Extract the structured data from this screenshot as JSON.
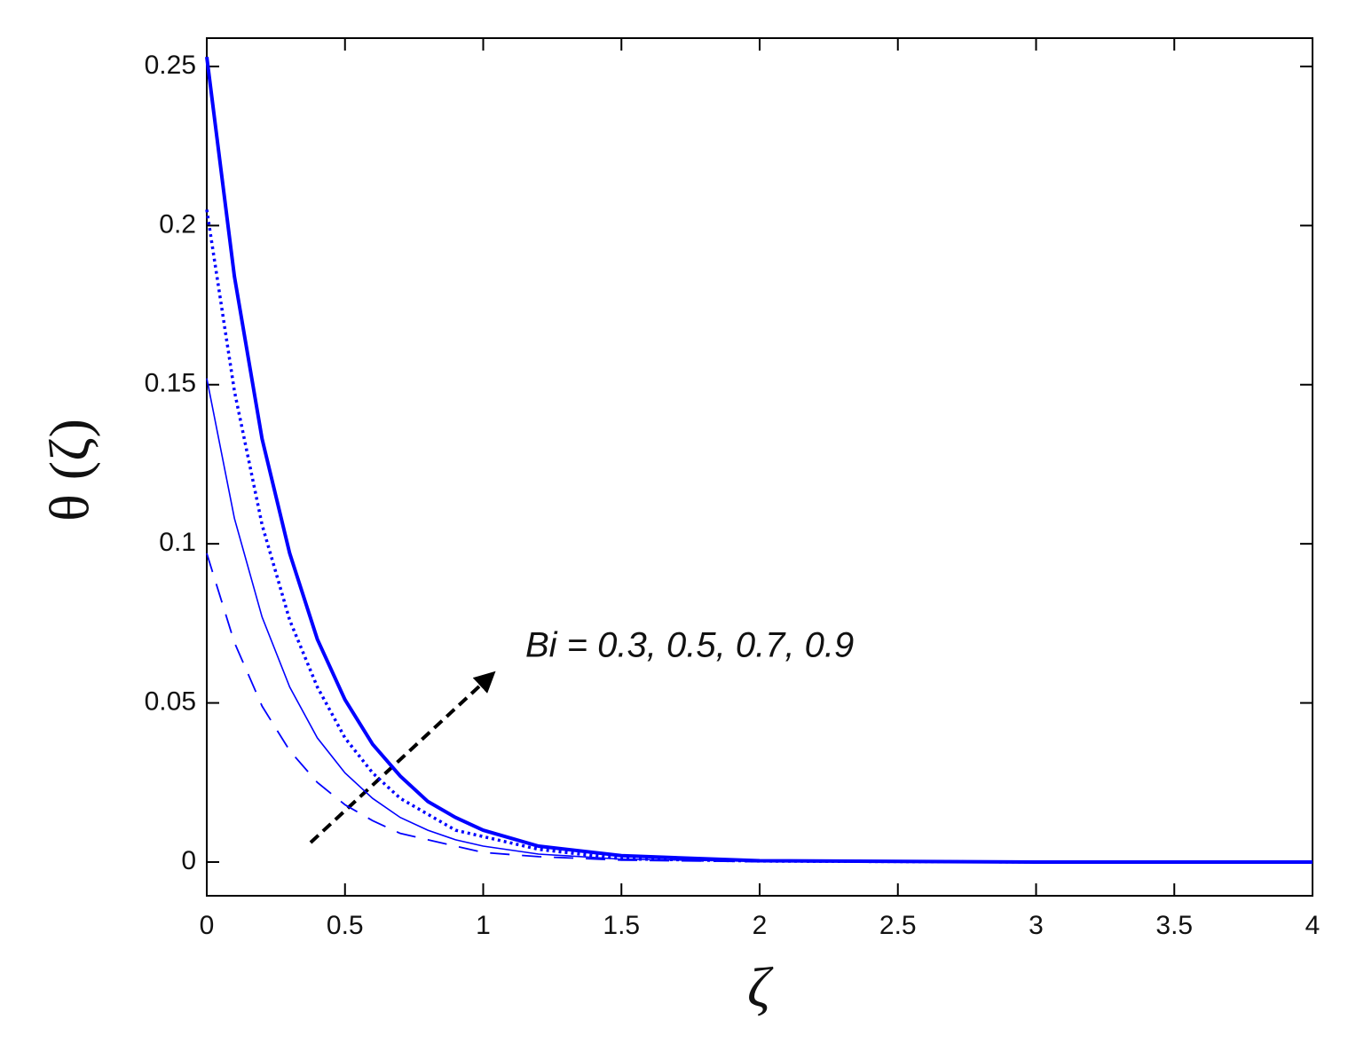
{
  "chart_data": {
    "type": "line",
    "xlabel": "ζ",
    "ylabel": "θ (ζ)",
    "annotation": "Bi = 0.3, 0.5, 0.7, 0.9",
    "x": [
      0,
      0.1,
      0.2,
      0.3,
      0.4,
      0.5,
      0.6,
      0.7,
      0.8,
      0.9,
      1.0,
      1.2,
      1.5,
      2,
      3,
      4
    ],
    "series": [
      {
        "color": "#0000ff",
        "linestyle": "dashed",
        "values": [
          0.097,
          0.069,
          0.049,
          0.035,
          0.025,
          0.018,
          0.013,
          0.009,
          0.007,
          0.005,
          0.003,
          0.0017,
          0.0006,
          0.0001,
          0,
          0
        ]
      },
      {
        "color": "#0000ff",
        "linestyle": "solid-thin",
        "values": [
          0.152,
          0.108,
          0.077,
          0.055,
          0.039,
          0.028,
          0.02,
          0.014,
          0.01,
          0.007,
          0.005,
          0.0025,
          0.0009,
          0.0002,
          0,
          0
        ]
      },
      {
        "color": "#0000ff",
        "linestyle": "dotted",
        "values": [
          0.205,
          0.148,
          0.106,
          0.076,
          0.055,
          0.039,
          0.028,
          0.02,
          0.015,
          0.01,
          0.008,
          0.004,
          0.001,
          0.0003,
          0,
          0
        ]
      },
      {
        "color": "#0000ff",
        "linestyle": "solid",
        "values": [
          0.253,
          0.184,
          0.133,
          0.097,
          0.07,
          0.051,
          0.037,
          0.027,
          0.019,
          0.014,
          0.01,
          0.005,
          0.002,
          0.0004,
          0,
          0
        ]
      }
    ],
    "xlim": [
      0,
      4
    ],
    "ylim": [
      -0.0106,
      0.2589
    ],
    "xticks": [
      0,
      0.5,
      1,
      1.5,
      2,
      2.5,
      3,
      3.5,
      4
    ],
    "yticks": [
      0,
      0.05,
      0.1,
      0.15,
      0.2,
      0.25
    ],
    "grid": false
  }
}
